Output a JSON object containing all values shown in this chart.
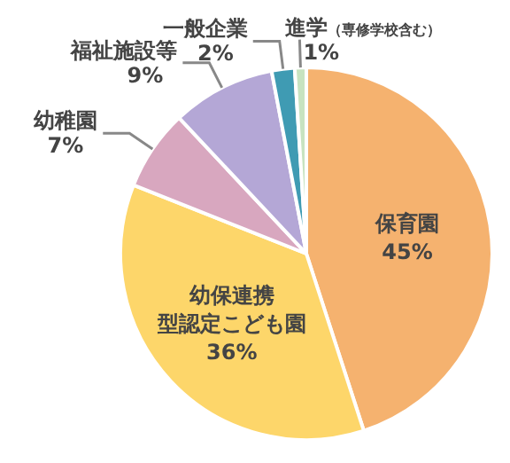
{
  "chart_data": {
    "type": "pie",
    "categories": [
      "保育園",
      "幼保連携型認定こども園",
      "幼稚園",
      "福祉施設等",
      "一般企業",
      "進学（専修学校含む）"
    ],
    "values": [
      45,
      36,
      7,
      9,
      2,
      1
    ],
    "colors": [
      "#f5b26f",
      "#fdd66a",
      "#d8a7bf",
      "#b4a7d6",
      "#3f9bb3",
      "#c7e3c0"
    ],
    "value_labels": [
      "45%",
      "36%",
      "7%",
      "9%",
      "2%",
      "1%"
    ]
  }
}
